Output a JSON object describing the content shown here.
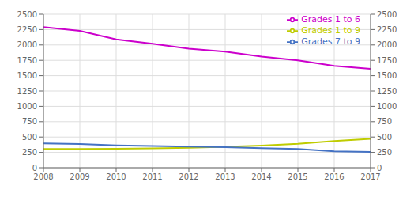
{
  "chart_data": {
    "type": "line",
    "x": [
      2008,
      2009,
      2010,
      2011,
      2012,
      2013,
      2014,
      2015,
      2016,
      2017
    ],
    "series": [
      {
        "name": "Grades 1 to 9",
        "color": "#bfcc00",
        "values": [
          305,
          305,
          310,
          315,
          325,
          340,
          360,
          390,
          435,
          470
        ]
      },
      {
        "name": "Grades 7 to 9",
        "color": "#4472c4",
        "values": [
          395,
          385,
          365,
          355,
          345,
          335,
          320,
          305,
          268,
          258
        ]
      },
      {
        "name": "Grades 1 to 6",
        "color": "#cc00cc",
        "values": [
          2290,
          2230,
          2090,
          2020,
          1940,
          1890,
          1810,
          1750,
          1660,
          1610
        ]
      }
    ],
    "xlim": [
      2008,
      2017
    ],
    "xticks": [
      2008,
      2009,
      2010,
      2011,
      2012,
      2013,
      2014,
      2015,
      2016,
      2017
    ],
    "ylim": [
      0,
      2500
    ],
    "yticks": [
      0,
      250,
      500,
      750,
      1000,
      1250,
      1500,
      1750,
      2000,
      2250,
      2500
    ],
    "y2lim": [
      0,
      2500
    ],
    "y2ticks": [
      0,
      250,
      500,
      750,
      1000,
      1250,
      1500,
      1750,
      2000,
      2250,
      2500
    ],
    "grid": true,
    "legend": "upper right"
  }
}
